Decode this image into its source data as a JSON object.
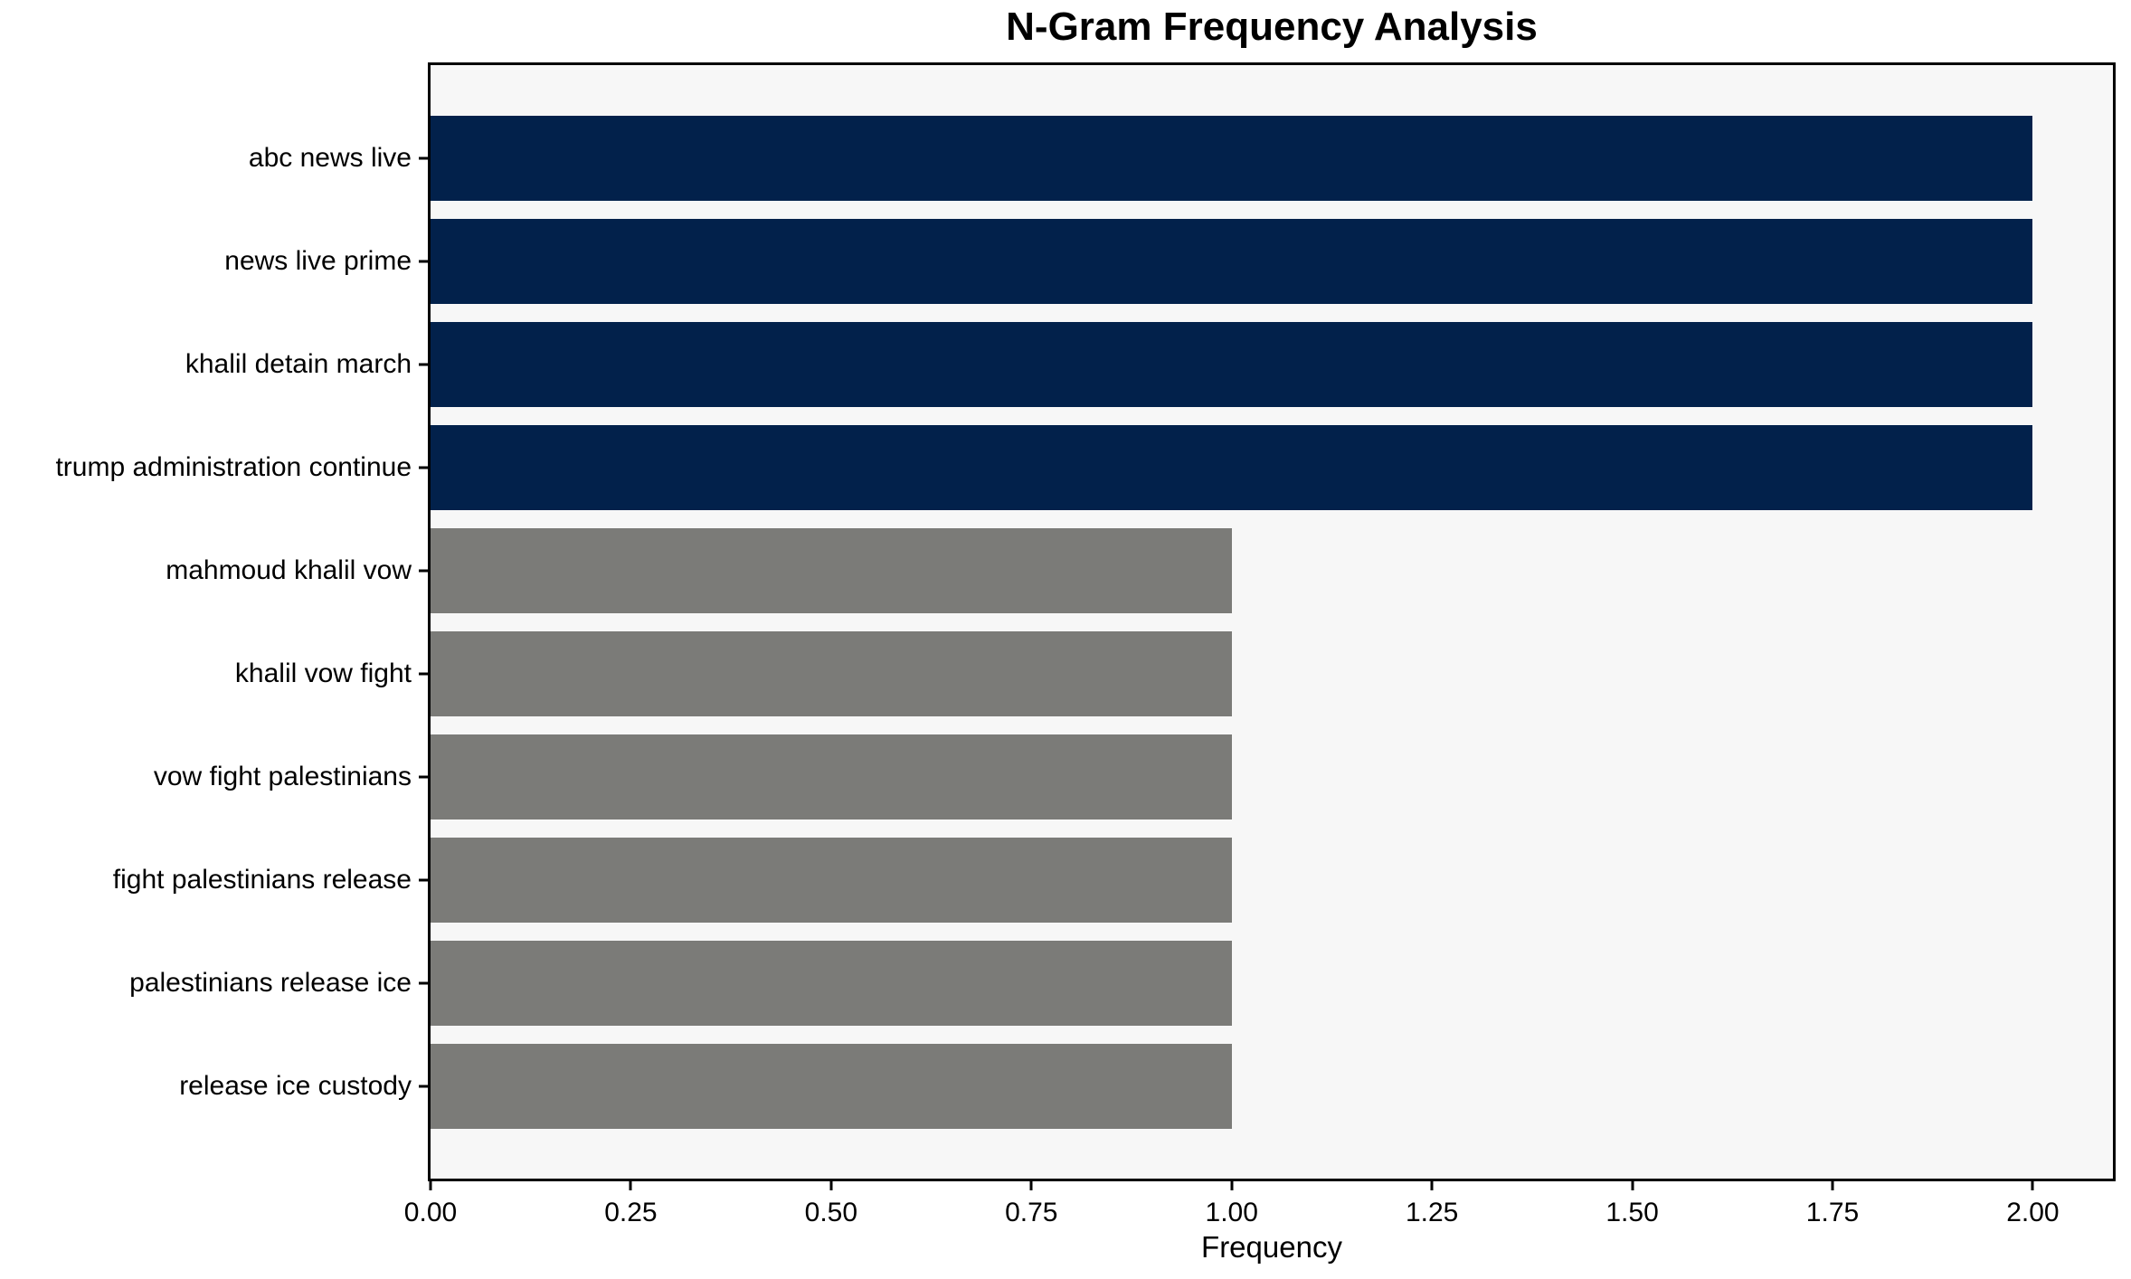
{
  "chart_data": {
    "type": "bar",
    "orientation": "horizontal",
    "title": "N-Gram Frequency Analysis",
    "xlabel": "Frequency",
    "ylabel": "",
    "categories": [
      "abc news live",
      "news live prime",
      "khalil detain march",
      "trump administration continue",
      "mahmoud khalil vow",
      "khalil vow fight",
      "vow fight palestinians",
      "fight palestinians release",
      "palestinians release ice",
      "release ice custody"
    ],
    "values": [
      2,
      2,
      2,
      2,
      1,
      1,
      1,
      1,
      1,
      1
    ],
    "bar_colors": [
      "#02214b",
      "#02214b",
      "#02214b",
      "#02214b",
      "#7b7b78",
      "#7b7b78",
      "#7b7b78",
      "#7b7b78",
      "#7b7b78",
      "#7b7b78"
    ],
    "xlim": [
      0,
      2.1
    ],
    "xticks": [
      0,
      0.25,
      0.5,
      0.75,
      1.0,
      1.25,
      1.5,
      1.75,
      2.0
    ],
    "xtick_labels": [
      "0.00",
      "0.25",
      "0.50",
      "0.75",
      "1.00",
      "1.25",
      "1.50",
      "1.75",
      "2.00"
    ],
    "grid": false,
    "legend_position": "none",
    "colors": {
      "high_frequency_bar": "#02214b",
      "low_frequency_bar": "#7b7b78",
      "plot_background": "#f7f7f7",
      "figure_background": "#ffffff",
      "spine": "#000000",
      "text": "#000000"
    }
  }
}
